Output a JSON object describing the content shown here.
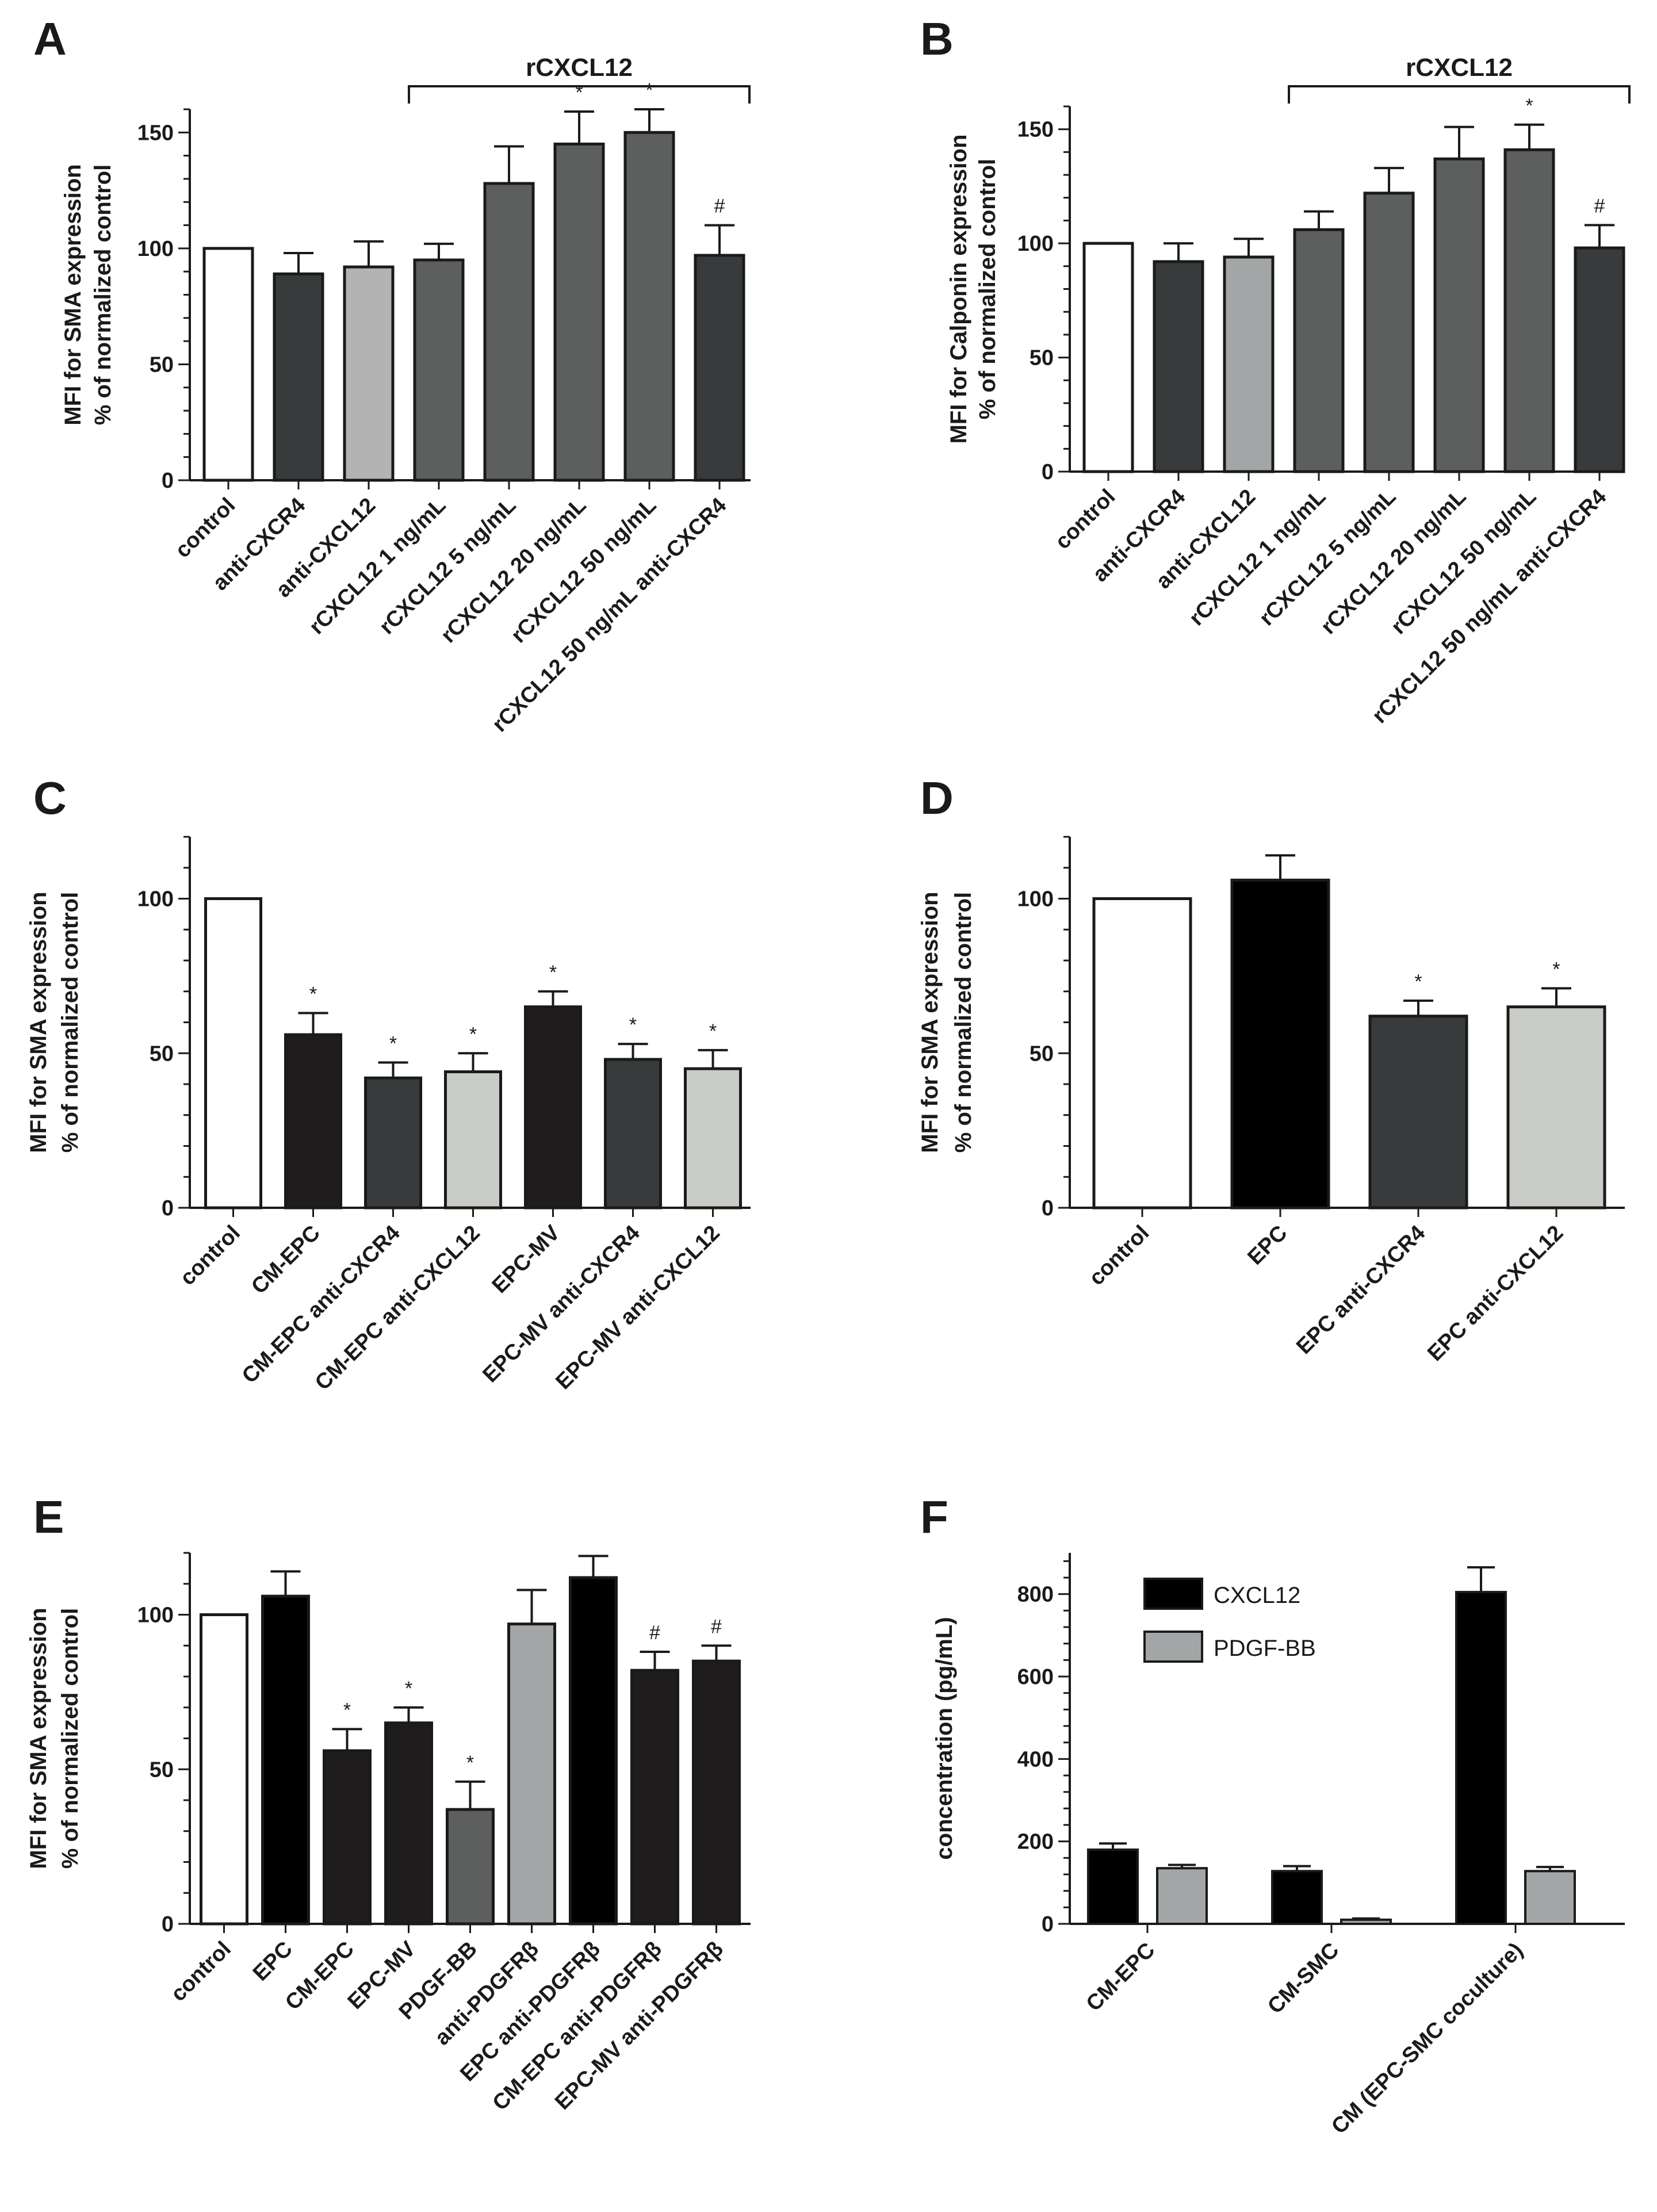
{
  "chart_data": [
    {
      "type": "bar",
      "panel": "A",
      "title": "",
      "ylabel": [
        "MFI for SMA expression",
        "% of normalized control"
      ],
      "yticks": [
        0,
        50,
        100,
        150
      ],
      "ylim": [
        0,
        160
      ],
      "categories": [
        "control",
        "anti-CXCR4",
        "anti-CXCL12",
        "rCXCL12 1 ng/mL",
        "rCXCL12 5 ng/mL",
        "rCXCL12 20 ng/mL",
        "rCXCL12 50 ng/mL",
        "rCXCL12 50 ng/mL anti-CXCR4"
      ],
      "values": [
        100,
        89,
        92,
        95,
        128,
        145,
        150,
        97
      ],
      "errors": [
        0,
        9,
        11,
        7,
        16,
        14,
        10,
        13
      ],
      "colors": [
        "#ffffff",
        "#383b3b",
        "#b3b3b3",
        "#5c5f5e",
        "#5c5f5e",
        "#5c5f5e",
        "#5c5f5e",
        "#383b3b"
      ],
      "marks": [
        "",
        "",
        "",
        "",
        "",
        "*",
        "*",
        "#"
      ],
      "bracket": {
        "label": "rCXCL12",
        "from": 3,
        "to": 7
      }
    },
    {
      "type": "bar",
      "panel": "B",
      "title": "",
      "ylabel": [
        "MFI for Calponin expression",
        "% of normalized control"
      ],
      "yticks": [
        0,
        50,
        100,
        150
      ],
      "ylim": [
        0,
        160
      ],
      "categories": [
        "control",
        "anti-CXCR4",
        "anti-CXCL12",
        "rCXCL12 1 ng/mL",
        "rCXCL12 5 ng/mL",
        "rCXCL12 20 ng/mL",
        "rCXCL12 50 ng/mL",
        "rCXCL12 50 ng/mL anti-CXCR4"
      ],
      "values": [
        100,
        92,
        94,
        106,
        122,
        137,
        141,
        98
      ],
      "errors": [
        0,
        8,
        8,
        8,
        11,
        14,
        11,
        10
      ],
      "colors": [
        "#ffffff",
        "#383b3b",
        "#a3a6a6",
        "#5c5f5e",
        "#5c5f5e",
        "#5c5f5e",
        "#5c5f5e",
        "#383b3b"
      ],
      "marks": [
        "",
        "",
        "",
        "",
        "",
        "",
        "*",
        "#"
      ],
      "bracket": {
        "label": "rCXCL12",
        "from": 3,
        "to": 7
      }
    },
    {
      "type": "bar",
      "panel": "C",
      "title": "",
      "ylabel": [
        "MFI for SMA expression",
        "% of normalized control"
      ],
      "yticks": [
        0,
        50,
        100
      ],
      "ylim": [
        0,
        120
      ],
      "categories": [
        "control",
        "CM-EPC",
        "CM-EPC anti-CXCR4",
        "CM-EPC anti-CXCL12",
        "EPC-MV",
        "EPC-MV anti-CXCR4",
        "EPC-MV  anti-CXCL12"
      ],
      "values": [
        100,
        56,
        42,
        44,
        65,
        48,
        45
      ],
      "errors": [
        0,
        7,
        5,
        6,
        5,
        5,
        6
      ],
      "colors": [
        "#ffffff",
        "#1e1c1d",
        "#383b3b",
        "#c9cbc6",
        "#1e1c1d",
        "#383b3b",
        "#c9cbc6"
      ],
      "marks": [
        "",
        "*",
        "*",
        "*",
        "*",
        "*",
        "*"
      ]
    },
    {
      "type": "bar",
      "panel": "D",
      "title": "",
      "ylabel": [
        "MFI for SMA expression",
        "% of normalized control"
      ],
      "yticks": [
        0,
        50,
        100
      ],
      "ylim": [
        0,
        120
      ],
      "categories": [
        "control",
        "EPC",
        "EPC anti-CXCR4",
        "EPC anti-CXCL12"
      ],
      "values": [
        100,
        106,
        62,
        65
      ],
      "errors": [
        0,
        8,
        5,
        6
      ],
      "colors": [
        "#ffffff",
        "#000000",
        "#383b3b",
        "#c9cbc6"
      ],
      "marks": [
        "",
        "",
        "*",
        "*"
      ]
    },
    {
      "type": "bar",
      "panel": "E",
      "title": "",
      "ylabel": [
        "MFI for SMA expression",
        "% of normalized control"
      ],
      "yticks": [
        0,
        50,
        100
      ],
      "ylim": [
        0,
        120
      ],
      "categories": [
        "control",
        "EPC",
        "CM-EPC",
        "EPC-MV",
        "PDGF-BB",
        "anti-PDGFRβ",
        "EPC anti-PDGFRβ",
        "CM-EPC anti-PDGFRβ",
        "EPC-MV anti-PDGFRβ"
      ],
      "values": [
        100,
        106,
        56,
        65,
        37,
        97,
        112,
        82,
        85
      ],
      "errors": [
        0,
        8,
        7,
        5,
        9,
        11,
        7,
        6,
        5
      ],
      "colors": [
        "#ffffff",
        "#000000",
        "#1e1c1d",
        "#1e1c1d",
        "#5c5f5e",
        "#a3a6a6",
        "#000000",
        "#1e1c1d",
        "#1e1c1d"
      ],
      "marks": [
        "",
        "",
        "*",
        "*",
        "*",
        "",
        "",
        "#",
        "#"
      ]
    },
    {
      "type": "bar",
      "panel": "F",
      "title": "",
      "ylabel": [
        "concentration (pg/mL)"
      ],
      "yticks": [
        0,
        200,
        400,
        600,
        800
      ],
      "ylim": [
        0,
        900
      ],
      "categories": [
        "CM-EPC",
        "CM-SMC",
        "CM (EPC-SMC coculture)"
      ],
      "series": [
        {
          "name": "CXCL12",
          "color": "#000000",
          "values": [
            180,
            128,
            805
          ],
          "errors": [
            15,
            12,
            60
          ]
        },
        {
          "name": "PDGF-BB",
          "color": "#a3a6a6",
          "values": [
            135,
            10,
            128
          ],
          "errors": [
            8,
            3,
            10
          ]
        }
      ],
      "legend": "top-left"
    }
  ]
}
